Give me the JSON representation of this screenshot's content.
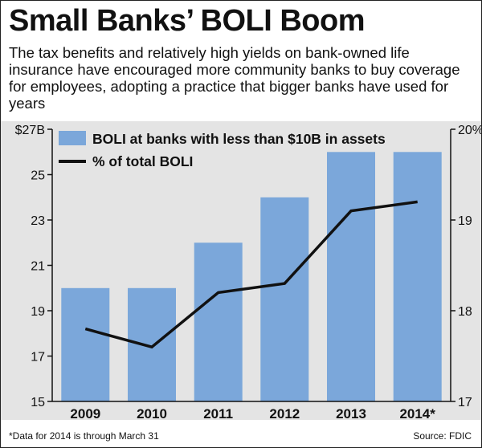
{
  "header": {
    "title": "Small Banks’ BOLI Boom",
    "subtitle": "The tax benefits and relatively high yields on bank-owned life insurance have encouraged more community banks to buy coverage for employees, adopting a practice that bigger banks have used for years"
  },
  "footer": {
    "footnote": "*Data for 2014 is through March 31",
    "source": "Source: FDIC"
  },
  "colors": {
    "bar": "#7ba7da",
    "line": "#111111",
    "plot_background": "#e4e4e4"
  },
  "chart_data": {
    "type": "bar",
    "categories": [
      "2009",
      "2010",
      "2011",
      "2012",
      "2013",
      "2014*"
    ],
    "series": [
      {
        "name": "BOLI at banks with less than $10B in assets",
        "type": "bar",
        "axis": "left",
        "values": [
          20,
          20,
          22,
          24,
          26,
          26
        ]
      },
      {
        "name": "% of total BOLI",
        "type": "line",
        "axis": "right",
        "values": [
          17.8,
          17.6,
          18.2,
          18.3,
          19.1,
          19.2
        ]
      }
    ],
    "y_left": {
      "lim": [
        15,
        27
      ],
      "ticks": [
        15,
        17,
        19,
        21,
        23,
        25,
        27
      ],
      "tick_labels": [
        "15",
        "17",
        "19",
        "21",
        "23",
        "25",
        "$27B"
      ]
    },
    "y_right": {
      "lim": [
        17,
        20
      ],
      "ticks": [
        17,
        18,
        19,
        20
      ],
      "tick_labels": [
        "17",
        "18",
        "19",
        "20%"
      ]
    },
    "legend": [
      {
        "label": "BOLI at banks with less than $10B in assets",
        "kind": "bar"
      },
      {
        "label": "% of total BOLI",
        "kind": "line"
      }
    ],
    "legend_position": "top-left"
  }
}
